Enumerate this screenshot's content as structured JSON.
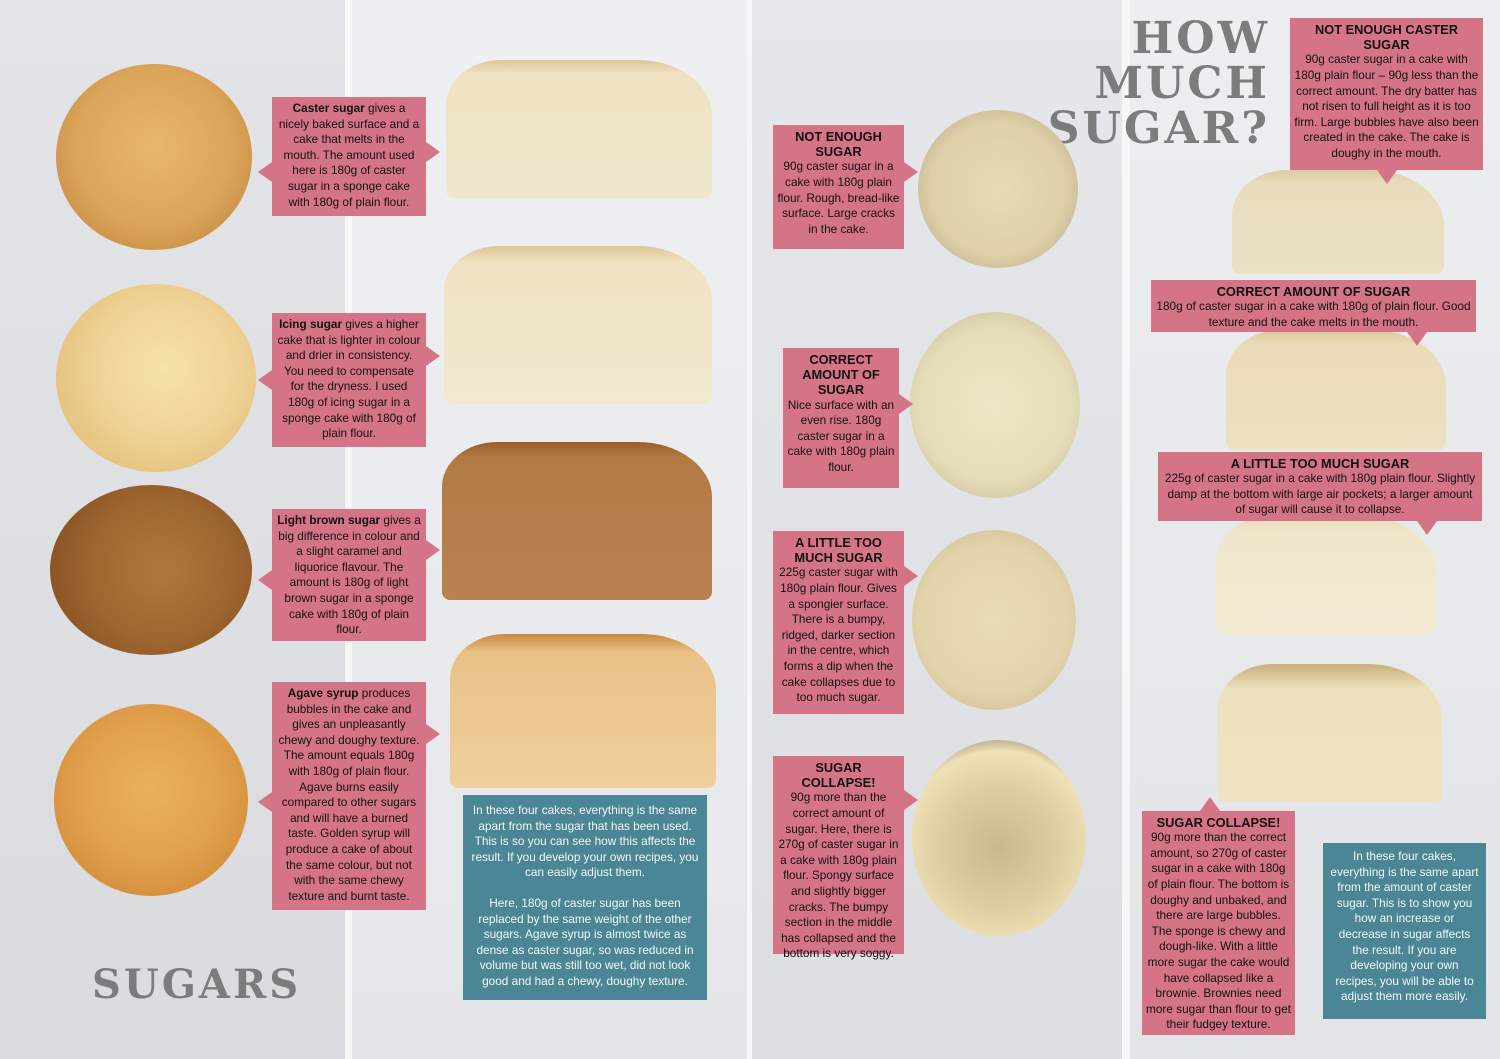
{
  "left_heading": "SUGARS",
  "right_heading_line1": "HOW MUCH",
  "right_heading_line2": "SUGAR?",
  "sugars": [
    {
      "lead": "Caster sugar",
      "text": " gives a nicely baked surface and a cake that melts in the mouth. The amount used here is 180g of caster sugar in a sponge cake with 180g of plain flour."
    },
    {
      "lead": "Icing sugar",
      "text": " gives a higher cake that is lighter in colour and drier in consistency. You need to compensate for the dryness. I used 180g of icing sugar in a sponge cake with 180g of plain flour."
    },
    {
      "lead": "Light brown sugar",
      "text": " gives a big difference in colour and a slight caramel and liquorice flavour. The amount is 180g of light brown sugar in a sponge cake with 180g of plain flour."
    },
    {
      "lead": "Agave syrup",
      "text": " produces bubbles in the cake and gives an unpleasantly chewy and doughy texture. The amount equals 180g with 180g of plain flour. Agave burns easily compared to other sugars and will have a burned taste. Golden syrup will produce a cake of about the same colour, but not with the same chewy texture and burnt taste."
    }
  ],
  "sugars_info": [
    "In these four cakes, everything is the same apart from the sugar that has been used. This is so you can see how this affects the result. If you develop your own recipes, you can easily adjust them.",
    "Here, 180g of caster sugar has been replaced by the same weight of the other sugars. Agave syrup is almost twice as dense as caster sugar, so was reduced in volume but was still too wet, did not look good and had a chewy, doughy texture."
  ],
  "amounts_top": [
    {
      "title": "NOT ENOUGH SUGAR",
      "text": "90g caster sugar in a cake with 180g plain flour. Rough, bread-like surface. Large cracks in the cake."
    },
    {
      "title": "CORRECT AMOUNT OF SUGAR",
      "text": "Nice surface with an even rise. 180g caster sugar in a cake with 180g plain flour."
    },
    {
      "title": "A LITTLE TOO MUCH SUGAR",
      "text": "225g caster sugar with 180g plain flour. Gives a spongier surface. There is a bumpy, ridged, darker section in the centre, which forms a dip when the cake collapses due to too much sugar."
    },
    {
      "title": "SUGAR COLLAPSE!",
      "text": "90g more than the correct amount of sugar. Here, there is 270g of caster sugar in a cake with 180g plain flour. Spongy surface and slightly bigger cracks. The bumpy section in the middle has collapsed and the bottom is very soggy."
    }
  ],
  "amounts_slices": [
    {
      "title": "NOT ENOUGH CASTER SUGAR",
      "text": "90g caster sugar in a cake with 180g plain flour – 90g less than the correct amount. The dry batter has not risen to full height as it is too firm. Large bubbles have also been created in the cake. The cake is doughy in the mouth."
    },
    {
      "title": "CORRECT AMOUNT OF SUGAR",
      "text": "180g of caster sugar in a cake with 180g of plain flour. Good texture and the cake melts in the mouth."
    },
    {
      "title": "A LITTLE TOO MUCH SUGAR",
      "text": "225g of caster sugar in a cake with 180g plain flour. Slightly damp at the bottom with large air pockets; a larger amount of sugar will cause it to collapse."
    },
    {
      "title": "SUGAR COLLAPSE!",
      "text": "90g more than the correct amount, so 270g of caster sugar in a cake with 180g of plain flour. The bottom is doughy and unbaked, and there are large bubbles. The sponge is chewy and dough-like. With a little more sugar the cake would have collapsed like a brownie. Brownies need more sugar than flour to get their fudgey texture."
    }
  ],
  "amounts_info": "In these four cakes, everything is the same apart from the amount of caster sugar. This is to show you how an increase or decrease in sugar affects the result. If you are developing your own recipes, you will be able to adjust them more easily.",
  "colors": {
    "note_pink": "#d57487",
    "info_teal": "#4b8696",
    "heading_grey": "#7c7c7c"
  }
}
